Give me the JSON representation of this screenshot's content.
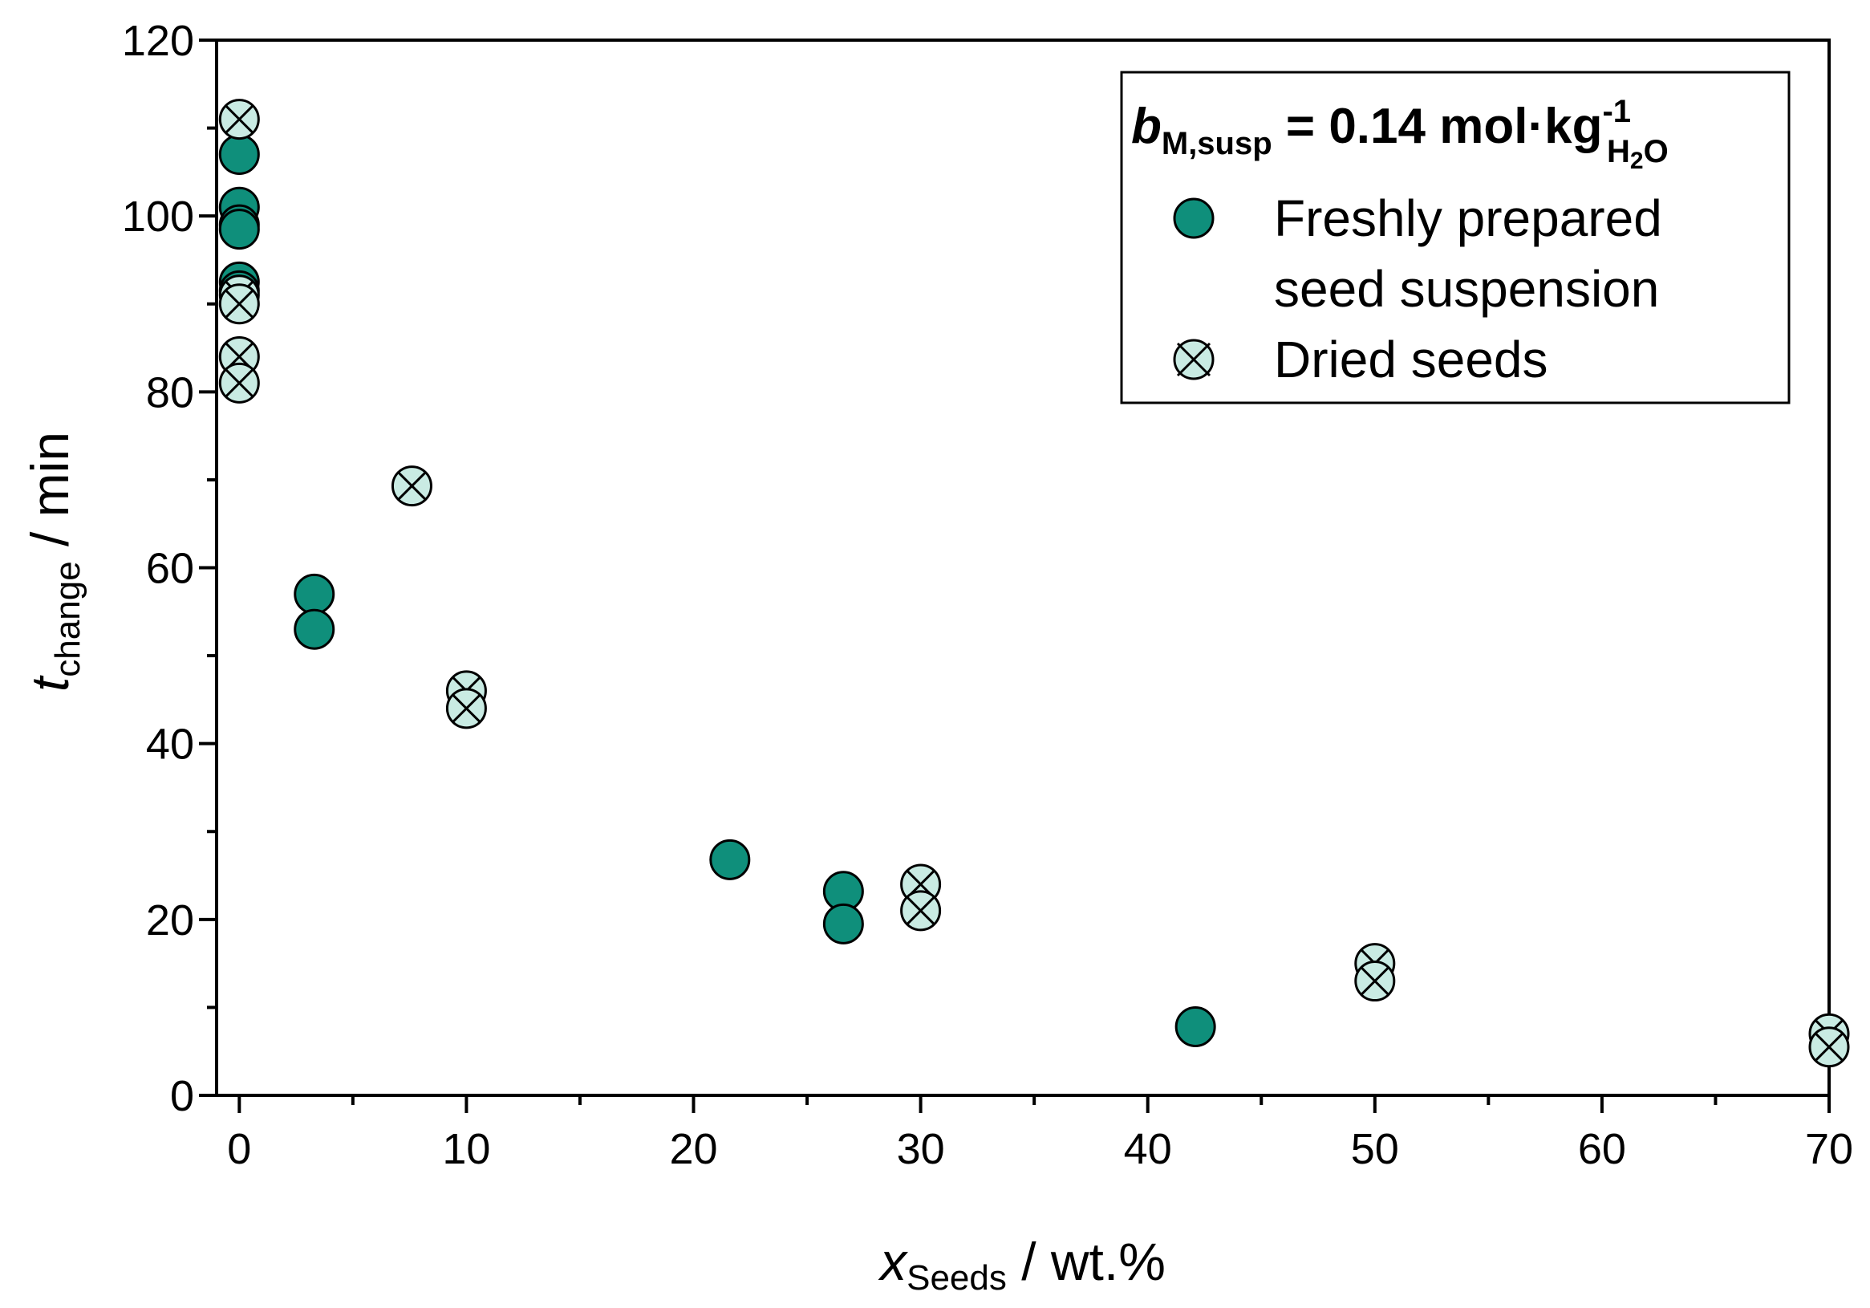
{
  "chart_data": {
    "type": "scatter",
    "xlabel": {
      "symbol": "x",
      "subscript": "Seeds",
      "unit": " / wt.%"
    },
    "ylabel": {
      "symbol": "t",
      "subscript": "change",
      "unit": " / min"
    },
    "xlim": [
      -1,
      70
    ],
    "ylim": [
      0,
      120
    ],
    "xticks": [
      0,
      10,
      20,
      30,
      40,
      50,
      60,
      70
    ],
    "yticks": [
      0,
      20,
      40,
      60,
      80,
      100,
      120
    ],
    "x_minor_step": 5,
    "y_minor_step": 10,
    "legend": {
      "position": "top-right",
      "title": {
        "symbol": "b",
        "subscript": "M,susp",
        "eq": " = 0.14 mol·kg",
        "sup": "-1",
        "sub_pre": "H",
        "sub_small": "2",
        "sub_post": "O"
      }
    },
    "series": [
      {
        "name": "Freshly prepared seed suspension",
        "legend_lines": [
          "Freshly prepared",
          "seed suspension"
        ],
        "marker": "filled-circle",
        "color": "#0f8f7b",
        "points": [
          [
            0,
            107
          ],
          [
            0,
            101
          ],
          [
            0,
            99
          ],
          [
            0,
            98.5
          ],
          [
            0,
            92.5
          ],
          [
            0,
            91.5
          ],
          [
            3.3,
            57
          ],
          [
            3.3,
            53
          ],
          [
            21.6,
            26.8
          ],
          [
            26.6,
            23.2
          ],
          [
            26.6,
            19.5
          ],
          [
            42.1,
            7.8
          ]
        ]
      },
      {
        "name": "Dried seeds",
        "legend_lines": [
          "Dried seeds"
        ],
        "marker": "crossed-circle",
        "color": "#c9ebe3",
        "points": [
          [
            0,
            111
          ],
          [
            0,
            91
          ],
          [
            0,
            90
          ],
          [
            0,
            84
          ],
          [
            0,
            81
          ],
          [
            7.6,
            69.3
          ],
          [
            10,
            46
          ],
          [
            10,
            44
          ],
          [
            30,
            24
          ],
          [
            30,
            21
          ],
          [
            50,
            15
          ],
          [
            50,
            13
          ],
          [
            70,
            7
          ],
          [
            70,
            5.5
          ]
        ]
      }
    ]
  }
}
